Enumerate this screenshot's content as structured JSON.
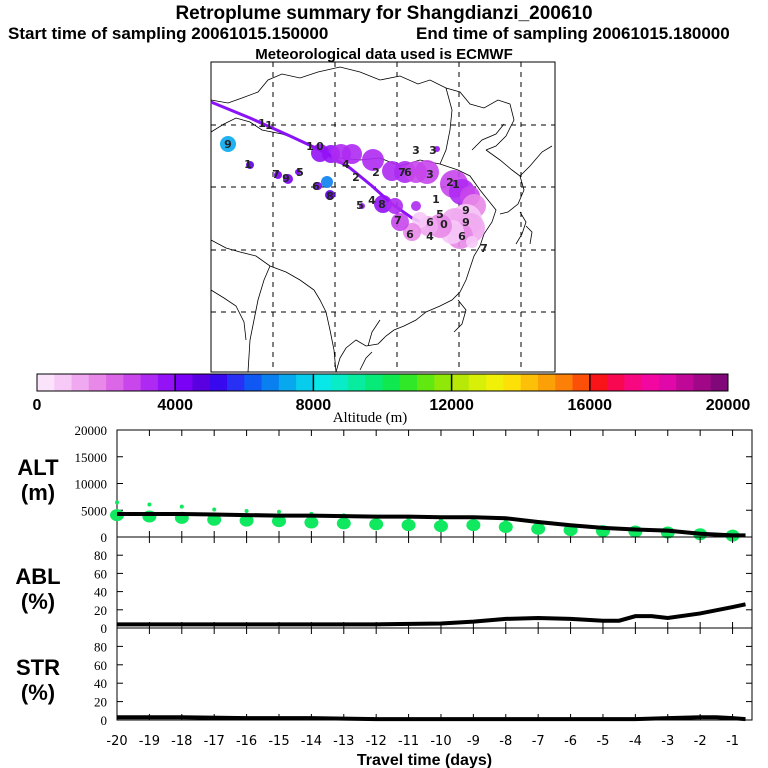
{
  "header": {
    "title": "Retroplume summary for Shangdianzi_200610",
    "start": "Start time of sampling 20061015.150000",
    "end": "End time of sampling 20061015.180000",
    "met": "Meteorological data used is ECMWF"
  },
  "colorbar": {
    "label": "Altitude (m)",
    "ticks": [
      "0",
      "4000",
      "8000",
      "12000",
      "16000",
      "20000"
    ],
    "colors": [
      "#fbe3fb",
      "#f7c9f7",
      "#f0a8f0",
      "#e888e8",
      "#dc66e8",
      "#c846ec",
      "#ae2af2",
      "#9412f6",
      "#7a00f6",
      "#5a00e0",
      "#3808ee",
      "#2830f6",
      "#1058f4",
      "#0a80f0",
      "#08a8ee",
      "#08ccec",
      "#08e8e8",
      "#08ecc8",
      "#08eca0",
      "#08ea78",
      "#10e850",
      "#30e828",
      "#60e810",
      "#90e808",
      "#b8e808",
      "#d8f008",
      "#f0f008",
      "#fce008",
      "#fcc008",
      "#fca008",
      "#fc8008",
      "#fc5008",
      "#f81418",
      "#f80850",
      "#f80880",
      "#f208a0",
      "#e008a8",
      "#c00898",
      "#a00888",
      "#800878"
    ]
  },
  "map": {
    "labels": [
      {
        "t": "1",
        "color": "#222"
      },
      {
        "t": "1",
        "color": "#222"
      },
      {
        "t": "1",
        "color": "#222"
      },
      {
        "t": "0",
        "color": "#222"
      },
      {
        "t": "2",
        "color": "#222"
      },
      {
        "t": "3",
        "color": "#222"
      },
      {
        "t": "2",
        "color": "#222"
      },
      {
        "t": "5",
        "color": "#222"
      },
      {
        "t": "4",
        "color": "#222"
      },
      {
        "t": "6",
        "color": "#222"
      },
      {
        "t": "5",
        "color": "#222"
      },
      {
        "t": "7",
        "color": "#222"
      },
      {
        "t": "9",
        "color": "#222"
      },
      {
        "t": "1",
        "color": "#222"
      },
      {
        "t": "8",
        "color": "#222"
      },
      {
        "t": "7",
        "color": "#222"
      },
      {
        "t": "1",
        "color": "#222"
      },
      {
        "t": "6",
        "color": "#222"
      },
      {
        "t": "6",
        "color": "#222"
      },
      {
        "t": "4",
        "color": "#222"
      },
      {
        "t": "3",
        "color": "#222"
      },
      {
        "t": "7",
        "color": "#222"
      },
      {
        "t": "8",
        "color": "#222"
      },
      {
        "t": "1",
        "color": "#222"
      },
      {
        "t": "0",
        "color": "#222"
      },
      {
        "t": "9",
        "color": "#222"
      },
      {
        "t": "5",
        "color": "#222"
      },
      {
        "t": "6",
        "color": "#222"
      },
      {
        "t": "4",
        "color": "#222"
      },
      {
        "t": "3",
        "color": "#222"
      },
      {
        "t": "2",
        "color": "#222"
      },
      {
        "t": "9",
        "color": "#222"
      },
      {
        "t": "6",
        "color": "#222"
      },
      {
        "t": "7",
        "color": "#222"
      },
      {
        "t": "9",
        "color": "#222"
      }
    ]
  },
  "chart_data": [
    {
      "type": "line",
      "name": "ALT",
      "ylabel_line1": "ALT",
      "ylabel_line2": "(m)",
      "ylim": [
        0,
        20000
      ],
      "yticks": [
        "0",
        "5000",
        "10000",
        "15000",
        "20000"
      ],
      "x": [
        -20,
        -19,
        -18,
        -17,
        -16,
        -15,
        -14,
        -13,
        -12,
        -11,
        -10,
        -9,
        -8,
        -7,
        -6,
        -5,
        -4,
        -3,
        -2,
        -1,
        -0.6
      ],
      "series": [
        {
          "name": "mean altitude",
          "color": "#000000",
          "values": [
            4300,
            4300,
            4300,
            4200,
            4100,
            4000,
            4000,
            3900,
            3800,
            3800,
            3700,
            3700,
            3500,
            2800,
            2200,
            1700,
            1400,
            1200,
            600,
            300,
            300
          ]
        }
      ],
      "spread": [
        {
          "x": -20,
          "v": 4800
        },
        {
          "x": -19,
          "v": 4500
        },
        {
          "x": -18,
          "v": 4200
        },
        {
          "x": -17,
          "v": 3800
        },
        {
          "x": -16,
          "v": 3600
        },
        {
          "x": -15,
          "v": 3500
        },
        {
          "x": -14,
          "v": 3200
        },
        {
          "x": -13,
          "v": 3000
        },
        {
          "x": -12,
          "v": 2800
        },
        {
          "x": -11,
          "v": 2600
        },
        {
          "x": -10,
          "v": 2400
        },
        {
          "x": -9,
          "v": 2600
        },
        {
          "x": -8,
          "v": 2200
        },
        {
          "x": -7,
          "v": 1800
        },
        {
          "x": -6,
          "v": 1500
        },
        {
          "x": -5,
          "v": 1300
        },
        {
          "x": -4,
          "v": 1200
        },
        {
          "x": -3,
          "v": 1000
        },
        {
          "x": -2,
          "v": 600
        },
        {
          "x": -1,
          "v": 300
        }
      ]
    },
    {
      "type": "line",
      "name": "ABL",
      "ylabel_line1": "ABL",
      "ylabel_line2": "(%)",
      "ylim": [
        0,
        100
      ],
      "yticks": [
        "0",
        "20",
        "40",
        "60",
        "80"
      ],
      "x": [
        -20,
        -18,
        -16,
        -14,
        -12,
        -10,
        -9,
        -8,
        -7,
        -6,
        -5,
        -4.5,
        -4,
        -3.5,
        -3,
        -2,
        -1,
        -0.6
      ],
      "series": [
        {
          "name": "fraction in ABL",
          "color": "#000000",
          "values": [
            4,
            4,
            4,
            4,
            4,
            5,
            7,
            10,
            11,
            10,
            8,
            8,
            13,
            13,
            11,
            16,
            23,
            26
          ]
        }
      ]
    },
    {
      "type": "line",
      "name": "STR",
      "ylabel_line1": "STR",
      "ylabel_line2": "(%)",
      "ylim": [
        0,
        100
      ],
      "yticks": [
        "0",
        "20",
        "40",
        "60",
        "80"
      ],
      "x": [
        -20,
        -18,
        -16,
        -14,
        -12,
        -10,
        -8,
        -6,
        -4,
        -3,
        -2,
        -1.5,
        -1,
        -0.6
      ],
      "series": [
        {
          "name": "fraction in stratosphere",
          "color": "#000000",
          "values": [
            3,
            3,
            2,
            2,
            1,
            1,
            1,
            1,
            1,
            2,
            3,
            3,
            2,
            1
          ]
        }
      ],
      "xlabel": "Travel time (days)",
      "xticks": [
        "-20",
        "-19",
        "-18",
        "-17",
        "-16",
        "-15",
        "-14",
        "-13",
        "-12",
        "-11",
        "-10",
        "-9",
        "-8",
        "-7",
        "-6",
        "-5",
        "-4",
        "-3",
        "-2",
        "-1"
      ]
    }
  ]
}
